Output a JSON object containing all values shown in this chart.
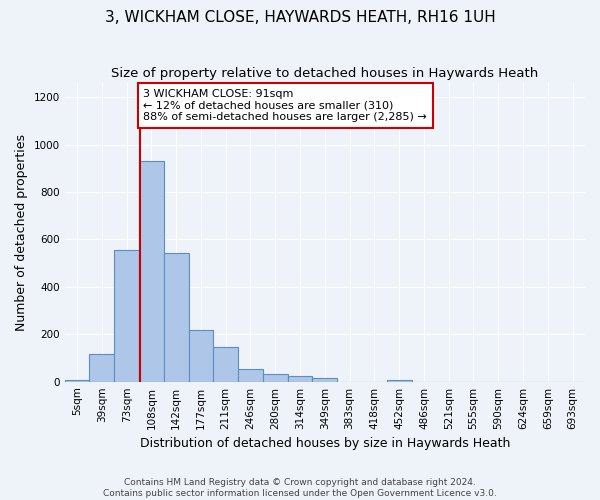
{
  "title": "3, WICKHAM CLOSE, HAYWARDS HEATH, RH16 1UH",
  "subtitle": "Size of property relative to detached houses in Haywards Heath",
  "xlabel": "Distribution of detached houses by size in Haywards Heath",
  "ylabel": "Number of detached properties",
  "footer_line1": "Contains HM Land Registry data © Crown copyright and database right 2024.",
  "footer_line2": "Contains public sector information licensed under the Open Government Licence v3.0.",
  "bin_labels": [
    "5sqm",
    "39sqm",
    "73sqm",
    "108sqm",
    "142sqm",
    "177sqm",
    "211sqm",
    "246sqm",
    "280sqm",
    "314sqm",
    "349sqm",
    "383sqm",
    "418sqm",
    "452sqm",
    "486sqm",
    "521sqm",
    "555sqm",
    "590sqm",
    "624sqm",
    "659sqm",
    "693sqm"
  ],
  "bar_values": [
    8,
    115,
    555,
    930,
    545,
    220,
    145,
    52,
    33,
    26,
    14,
    0,
    0,
    8,
    0,
    0,
    0,
    0,
    0,
    0,
    0
  ],
  "bar_color": "#aec6e8",
  "bar_edgecolor": "#5a8fc2",
  "bar_linewidth": 0.8,
  "vline_color": "#cc0000",
  "annotation_text": "3 WICKHAM CLOSE: 91sqm\n← 12% of detached houses are smaller (310)\n88% of semi-detached houses are larger (2,285) →",
  "annotation_box_color": "#ffffff",
  "annotation_box_edgecolor": "#cc0000",
  "ylim": [
    0,
    1260
  ],
  "yticks": [
    0,
    200,
    400,
    600,
    800,
    1000,
    1200
  ],
  "title_fontsize": 11,
  "subtitle_fontsize": 9.5,
  "xlabel_fontsize": 9,
  "ylabel_fontsize": 9,
  "tick_fontsize": 7.5,
  "annotation_fontsize": 8,
  "background_color": "#eef2f9",
  "grid_color": "#ffffff",
  "num_bins": 21
}
